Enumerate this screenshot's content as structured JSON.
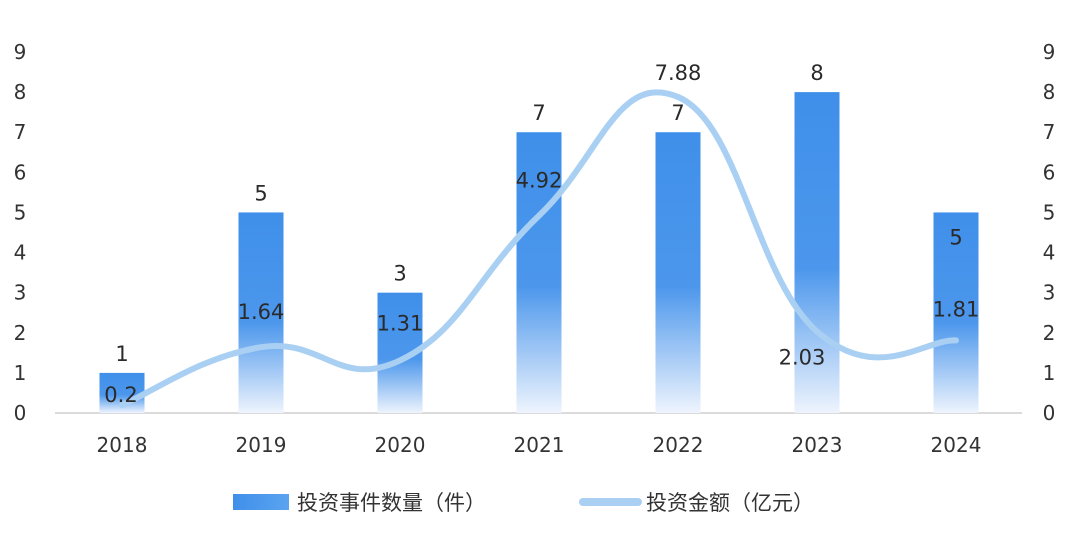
{
  "chart_data": {
    "type": "bar",
    "categories": [
      "2018",
      "2019",
      "2020",
      "2021",
      "2022",
      "2023",
      "2024"
    ],
    "series": [
      {
        "name": "投资事件数量（件）",
        "type": "bar",
        "axis": "left",
        "values": [
          1,
          5,
          3,
          7,
          7,
          8,
          5
        ],
        "labels": [
          "1",
          "5",
          "3",
          "7",
          "7",
          "8",
          "5"
        ]
      },
      {
        "name": "投资金额（亿元）",
        "type": "line",
        "axis": "right",
        "values": [
          0.2,
          1.64,
          1.31,
          4.92,
          7.88,
          2.03,
          1.81
        ],
        "labels": [
          "0.2",
          "1.64",
          "1.31",
          "4.92",
          "7.88",
          "2.03",
          "1.81"
        ]
      }
    ],
    "y_left": {
      "min": 0,
      "max": 9,
      "ticks": [
        "0",
        "1",
        "2",
        "3",
        "4",
        "5",
        "6",
        "7",
        "8",
        "9"
      ]
    },
    "y_right": {
      "min": 0,
      "max": 9,
      "ticks": [
        "0",
        "1",
        "2",
        "3",
        "4",
        "5",
        "6",
        "7",
        "8",
        "9"
      ]
    },
    "grid": false,
    "legend_position": "bottom-center",
    "colors": {
      "bar": "#3f8fea",
      "bar_fade": "#eef4fd",
      "line": "#a9d0f3",
      "baseline": "#cfcfcf"
    }
  }
}
